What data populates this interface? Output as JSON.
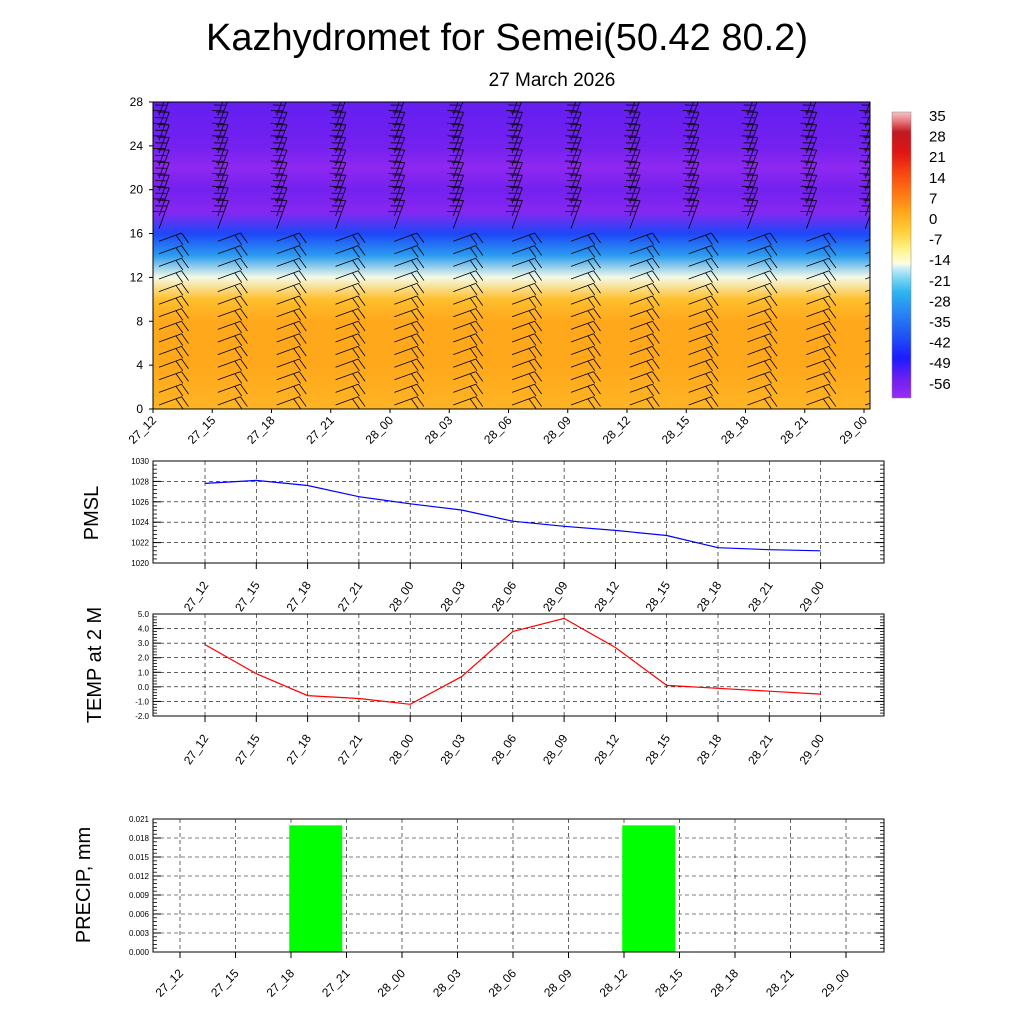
{
  "header": {
    "title": "Kazhydromet for Semei(50.42 80.2)",
    "subtitle": "27 March 2026"
  },
  "time_labels": [
    "27_12",
    "27_15",
    "27_18",
    "27_21",
    "28_00",
    "28_03",
    "28_06",
    "28_09",
    "28_12",
    "28_15",
    "28_18",
    "28_21",
    "29_00"
  ],
  "colors": {
    "pmsl_line": "#0000ff",
    "temp_line": "#ff0000",
    "precip_bar": "#00ff00"
  },
  "chart_data": [
    {
      "type": "heatmap",
      "title": "Kazhydromet for Semei(50.42 80.2)",
      "subtitle": "27 March 2026",
      "y_tick_labels": [
        "0",
        "4",
        "8",
        "12",
        "16",
        "20",
        "24",
        "28"
      ],
      "ylim": [
        0,
        28
      ],
      "colorbar": {
        "labels": [
          "35",
          "28",
          "21",
          "14",
          "7",
          "0",
          "-7",
          "-14",
          "-21",
          "-28",
          "-35",
          "-42",
          "-49",
          "-56"
        ],
        "range": [
          -63,
          42
        ]
      },
      "temperature_profile": [
        {
          "level": 0,
          "value": 3
        },
        {
          "level": 4,
          "value": 5
        },
        {
          "level": 8,
          "value": 5
        },
        {
          "level": 10,
          "value": 1
        },
        {
          "level": 12,
          "value": -14
        },
        {
          "level": 14,
          "value": -28
        },
        {
          "level": 16,
          "value": -42
        },
        {
          "level": 18,
          "value": -60
        },
        {
          "level": 20,
          "value": -57
        },
        {
          "level": 22,
          "value": -61
        },
        {
          "level": 24,
          "value": -57
        },
        {
          "level": 28,
          "value": -55
        }
      ],
      "wind_barbs": "present at all times and levels"
    },
    {
      "type": "line",
      "ylabel": "PMSL",
      "x": [
        "27_12",
        "27_15",
        "27_18",
        "27_21",
        "28_00",
        "28_03",
        "28_06",
        "28_09",
        "28_12",
        "28_15",
        "28_18",
        "28_21",
        "29_00"
      ],
      "values": [
        1027.8,
        1028.1,
        1027.6,
        1026.5,
        1025.8,
        1025.2,
        1024.1,
        1023.6,
        1023.2,
        1022.7,
        1021.5,
        1021.3,
        1021.2
      ],
      "ylim": [
        1020,
        1030
      ],
      "y_tick_labels": [
        "1020",
        "1022",
        "1024",
        "1026",
        "1028",
        "1030"
      ]
    },
    {
      "type": "line",
      "ylabel": "TEMP at 2 M",
      "x": [
        "27_12",
        "27_15",
        "27_18",
        "27_21",
        "28_00",
        "28_03",
        "28_06",
        "28_09",
        "28_12",
        "28_15",
        "28_18",
        "28_21",
        "29_00"
      ],
      "values": [
        2.9,
        0.9,
        -0.6,
        -0.8,
        -1.2,
        0.7,
        3.8,
        4.7,
        2.7,
        0.1,
        -0.1,
        -0.3,
        -0.5
      ],
      "ylim": [
        -2,
        5
      ],
      "y_tick_labels": [
        "-2.0",
        "-1.0",
        "0.0",
        "1.0",
        "2.0",
        "3.0",
        "4.0",
        "5.0"
      ]
    },
    {
      "type": "bar",
      "ylabel": "PRECIP, mm",
      "categories": [
        "27_12",
        "27_15",
        "27_18",
        "27_21",
        "28_00",
        "28_03",
        "28_06",
        "28_09",
        "28_12",
        "28_15",
        "28_18",
        "28_21",
        "29_00"
      ],
      "values": [
        0,
        0,
        0.02,
        0,
        0,
        0,
        0,
        0,
        0.02,
        0,
        0,
        0,
        0
      ],
      "ylim": [
        0,
        0.021
      ],
      "y_tick_labels": [
        "0.000",
        "0.003",
        "0.006",
        "0.009",
        "0.012",
        "0.015",
        "0.018",
        "0.021"
      ]
    }
  ]
}
